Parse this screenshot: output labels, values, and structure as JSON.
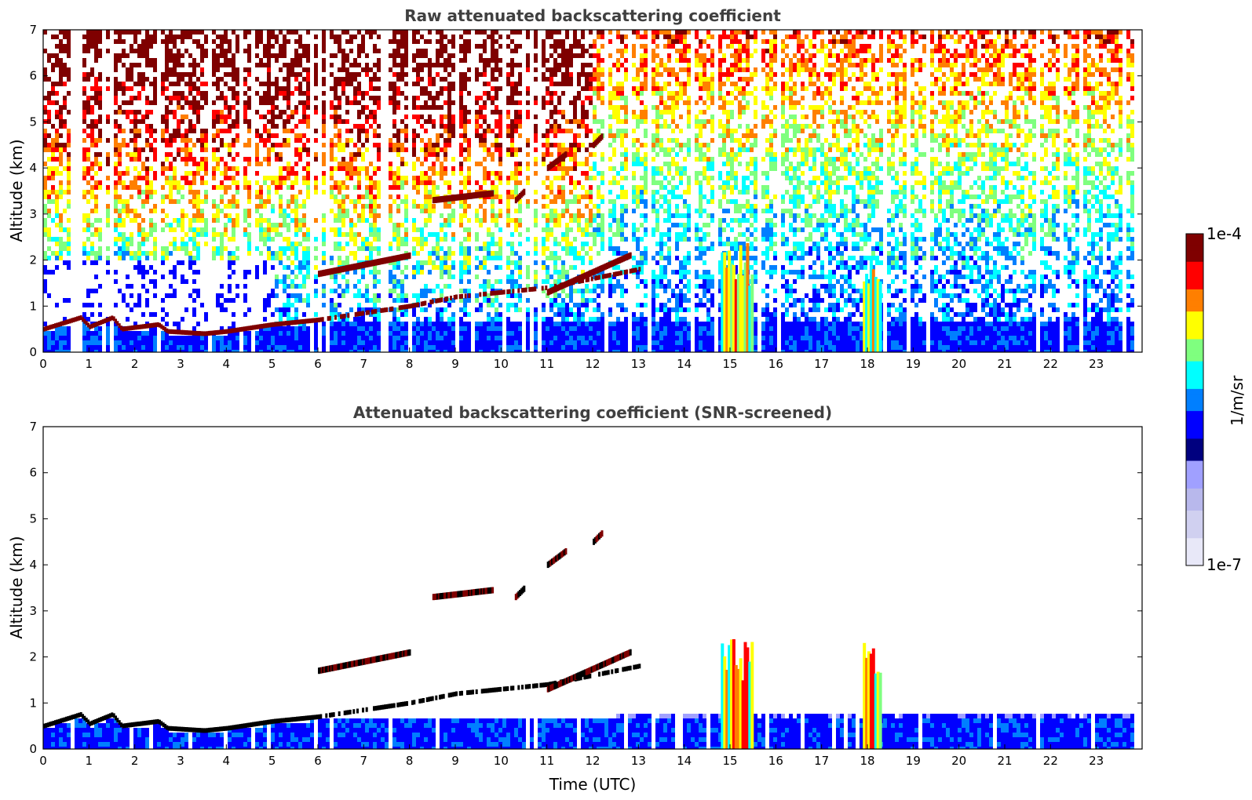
{
  "chart_data": [
    {
      "type": "heatmap",
      "title": "Raw attenuated backscattering coefficient",
      "xlabel": "",
      "ylabel": "Altitude (km)",
      "xlim": [
        0,
        24
      ],
      "ylim": [
        0,
        7
      ],
      "x_ticks": [
        "0",
        "1",
        "2",
        "3",
        "4",
        "5",
        "6",
        "7",
        "8",
        "9",
        "10",
        "11",
        "12",
        "13",
        "14",
        "15",
        "16",
        "17",
        "18",
        "19",
        "20",
        "21",
        "22",
        "23"
      ],
      "y_ticks": [
        "0",
        "1",
        "2",
        "3",
        "4",
        "5",
        "6",
        "7"
      ],
      "data_end_hour": 23.8,
      "screened": false,
      "boundary_layer_top_km": [
        [
          0,
          0.5
        ],
        [
          0.8,
          0.75
        ],
        [
          1.0,
          0.55
        ],
        [
          1.5,
          0.75
        ],
        [
          1.7,
          0.5
        ],
        [
          2.5,
          0.6
        ],
        [
          2.7,
          0.45
        ],
        [
          3.5,
          0.4
        ],
        [
          4,
          0.45
        ],
        [
          5,
          0.6
        ],
        [
          6,
          0.7
        ],
        [
          7,
          0.85
        ],
        [
          8,
          1.0
        ],
        [
          9,
          1.2
        ],
        [
          10,
          1.3
        ],
        [
          11,
          1.4
        ],
        [
          12,
          1.6
        ],
        [
          13,
          1.8
        ]
      ],
      "cloud_layers": [
        {
          "x": [
            6.0,
            8.0
          ],
          "alt_km": [
            1.7,
            2.1
          ]
        },
        {
          "x": [
            8.5,
            9.8
          ],
          "alt_km": [
            3.3,
            3.45
          ]
        },
        {
          "x": [
            10.3,
            10.5
          ],
          "alt_km": [
            3.3,
            3.5
          ]
        },
        {
          "x": [
            11.0,
            11.4
          ],
          "alt_km": [
            4.0,
            4.3
          ]
        },
        {
          "x": [
            12.0,
            12.2
          ],
          "alt_km": [
            4.5,
            4.7
          ]
        },
        {
          "x": [
            11.0,
            12.8
          ],
          "alt_km": [
            1.3,
            2.1
          ]
        }
      ],
      "precipitation_columns": [
        {
          "x": [
            14.8,
            15.5
          ],
          "alt_km": [
            0,
            2.4
          ]
        },
        {
          "x": [
            17.9,
            18.3
          ],
          "alt_km": [
            0,
            2.4
          ]
        }
      ],
      "colorbar": {
        "min": "1e-7",
        "max": "1e-4",
        "label": "1/m/sr",
        "scale": "log",
        "colormap": "jet"
      }
    },
    {
      "type": "heatmap",
      "title": "Attenuated backscattering coefficient (SNR-screened)",
      "xlabel": "Time (UTC)",
      "ylabel": "Altitude (km)",
      "xlim": [
        0,
        24
      ],
      "ylim": [
        0,
        7
      ],
      "x_ticks": [
        "0",
        "1",
        "2",
        "3",
        "4",
        "5",
        "6",
        "7",
        "8",
        "9",
        "10",
        "11",
        "12",
        "13",
        "14",
        "15",
        "16",
        "17",
        "18",
        "19",
        "20",
        "21",
        "22",
        "23"
      ],
      "y_ticks": [
        "0",
        "1",
        "2",
        "3",
        "4",
        "5",
        "6",
        "7"
      ],
      "data_end_hour": 23.8,
      "screened": true
    }
  ],
  "colorbar": {
    "max_label": "1e-4",
    "min_label": "1e-7",
    "unit_label": "1/m/sr"
  },
  "colors": {
    "jet": [
      "#00007f",
      "#0000ff",
      "#007fff",
      "#00ffff",
      "#7fff7f",
      "#ffff00",
      "#ff7f00",
      "#ff0000",
      "#7f0000"
    ],
    "faint": [
      "#e8e8f8",
      "#d0d0f0",
      "#b8b8ec",
      "#a0a0ff"
    ],
    "title_gray": "#404040"
  }
}
